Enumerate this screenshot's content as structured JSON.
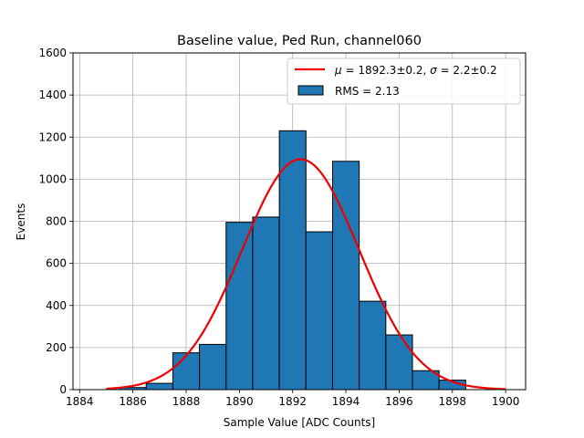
{
  "chart_data": {
    "type": "bar",
    "title": "Baseline value, Ped Run, channel060",
    "xlabel": "Sample Value [ADC Counts]",
    "ylabel": "Events",
    "xlim": [
      1883.75,
      1900.75
    ],
    "ylim": [
      0,
      1600
    ],
    "grid": true,
    "x_ticks": [
      "1884",
      "1886",
      "1888",
      "1890",
      "1892",
      "1894",
      "1896",
      "1898",
      "1900"
    ],
    "y_ticks": [
      "0",
      "200",
      "400",
      "600",
      "800",
      "1000",
      "1200",
      "1400",
      "1600"
    ],
    "histogram": {
      "name": "RMS = 2.13",
      "color": "#1f77b4",
      "bins": [
        {
          "x0": 1885.5,
          "x1": 1886.5,
          "value": 10
        },
        {
          "x0": 1886.5,
          "x1": 1887.5,
          "value": 30
        },
        {
          "x0": 1887.5,
          "x1": 1888.5,
          "value": 175
        },
        {
          "x0": 1888.5,
          "x1": 1889.5,
          "value": 215
        },
        {
          "x0": 1889.5,
          "x1": 1890.5,
          "value": 795
        },
        {
          "x0": 1890.5,
          "x1": 1891.5,
          "value": 820
        },
        {
          "x0": 1891.5,
          "x1": 1892.5,
          "value": 1230
        },
        {
          "x0": 1892.5,
          "x1": 1893.5,
          "value": 750
        },
        {
          "x0": 1893.5,
          "x1": 1894.5,
          "value": 1085
        },
        {
          "x0": 1894.5,
          "x1": 1895.5,
          "value": 420
        },
        {
          "x0": 1895.5,
          "x1": 1896.5,
          "value": 260
        },
        {
          "x0": 1896.5,
          "x1": 1897.5,
          "value": 90
        },
        {
          "x0": 1897.5,
          "x1": 1898.5,
          "value": 45
        }
      ]
    },
    "fit": {
      "name": "μ = 1892.3±0.2, σ = 2.2±0.2",
      "color": "#ee0000",
      "mu": 1892.3,
      "sigma": 2.2,
      "amplitude": 1095,
      "x_range": [
        1885,
        1900
      ]
    },
    "legend": {
      "placement": "top-right",
      "fit_label_mu": "μ",
      "fit_label_mu_rest": " = 1892.3±0.2, ",
      "fit_label_sigma": "σ",
      "fit_label_sigma_rest": " = 2.2±0.2",
      "hist_label": "RMS = 2.13"
    }
  }
}
